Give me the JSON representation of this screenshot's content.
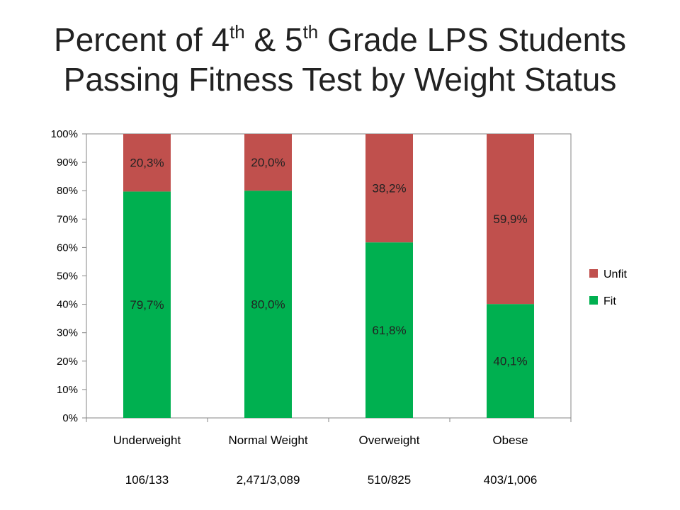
{
  "title": {
    "line1_part1": "Percent of 4",
    "line1_sup1": "th",
    "line1_part2": " & 5",
    "line1_sup2": "th",
    "line1_part3": " Grade LPS Students",
    "line2": "Passing Fitness Test by Weight Status"
  },
  "chart_data": {
    "type": "bar",
    "stacked": true,
    "title": "Percent of 4th & 5th Grade LPS Students Passing Fitness Test by Weight Status",
    "categories": [
      "Underweight",
      "Normal Weight",
      "Overweight",
      "Obese"
    ],
    "category_counts": [
      "106/133",
      "2,471/3,089",
      "510/825",
      "403/1,006"
    ],
    "series": [
      {
        "name": "Fit",
        "values": [
          79.7,
          80.0,
          61.8,
          40.1
        ],
        "labels": [
          "79,7%",
          "80,0%",
          "61,8%",
          "40,1%"
        ],
        "color": "#00b050"
      },
      {
        "name": "Unfit",
        "values": [
          20.3,
          20.0,
          38.2,
          59.9
        ],
        "labels": [
          "20,3%",
          "20,0%",
          "38,2%",
          "59,9%"
        ],
        "color": "#c0504d"
      }
    ],
    "ylim": [
      0,
      100
    ],
    "yticks": [
      "0%",
      "10%",
      "20%",
      "30%",
      "40%",
      "50%",
      "60%",
      "70%",
      "80%",
      "90%",
      "100%"
    ],
    "grid": false,
    "legend": {
      "position": "right",
      "entries": [
        "Unfit",
        "Fit"
      ]
    },
    "xlabel": "",
    "ylabel": ""
  },
  "colors": {
    "fit": "#00b050",
    "unfit": "#c0504d",
    "axis": "#868686"
  }
}
